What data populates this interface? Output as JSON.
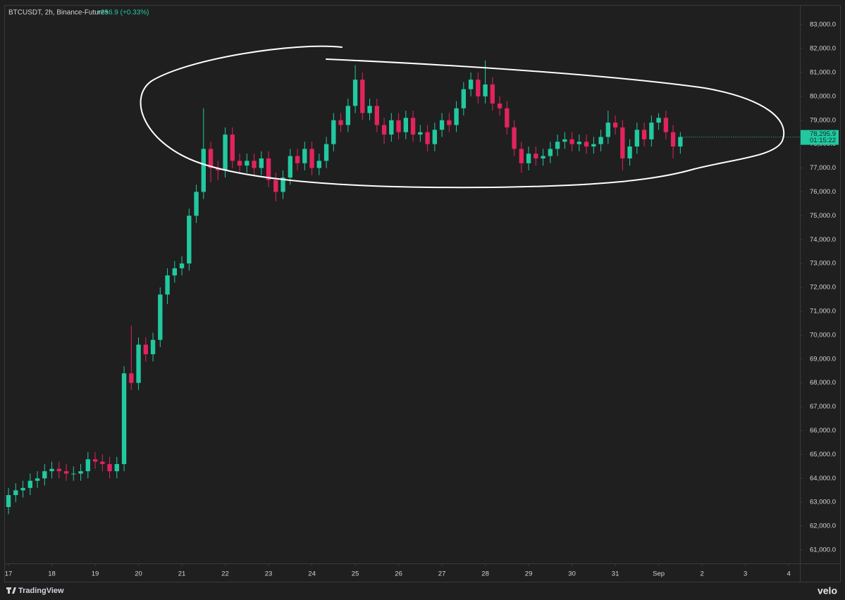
{
  "chart_data": {
    "type": "candlestick",
    "title": "BTCUSDT, 2h, Binance-Futures",
    "change_label": "+256.9 (+0.33%)",
    "watermark": "TradingView",
    "brand": "velo",
    "up_color": "#22c9a0",
    "down_color": "#e0245e",
    "x": [
      0,
      4,
      8,
      12,
      16,
      20,
      24,
      28,
      32,
      36,
      40,
      44,
      48,
      52,
      56,
      60,
      64,
      68,
      72,
      76,
      80,
      84,
      88,
      92,
      96,
      100,
      104,
      108,
      112,
      116,
      120,
      124,
      128,
      132,
      136,
      140,
      144,
      148,
      152,
      156,
      160,
      164,
      168,
      172,
      176,
      180,
      184,
      188,
      192,
      196,
      200,
      204,
      208,
      212,
      216,
      220,
      224,
      228,
      232,
      236,
      240,
      244,
      248,
      252,
      256,
      260,
      264,
      268,
      272,
      276,
      280,
      284,
      288,
      292,
      296,
      300,
      304,
      308,
      312,
      316,
      320,
      324,
      328,
      332,
      336,
      340,
      344,
      348,
      352,
      356,
      360,
      364,
      368,
      372
    ],
    "open": [
      62800,
      63300,
      63500,
      63600,
      63900,
      64000,
      64300,
      64400,
      64300,
      64200,
      64200,
      64300,
      64800,
      64700,
      64600,
      64300,
      64600,
      68400,
      68000,
      69600,
      69200,
      69800,
      71700,
      72500,
      72800,
      73000,
      75000,
      76000,
      77800,
      77000,
      76900,
      78400,
      77300,
      77100,
      77300,
      77000,
      77400,
      76500,
      76000,
      76600,
      77500,
      77200,
      77800,
      77000,
      77300,
      78000,
      79000,
      78800,
      79600,
      80700,
      79300,
      79600,
      78800,
      78400,
      79000,
      78500,
      79100,
      78400,
      78500,
      78000,
      78600,
      79000,
      78800,
      79500,
      80300,
      80700,
      80000,
      80500,
      79700,
      79500,
      78700,
      77800,
      77200,
      77600,
      77400,
      77500,
      77800,
      78100,
      78200,
      78000,
      78100,
      77900,
      78000,
      78300,
      78900,
      78700,
      77400,
      77900,
      78600,
      78200,
      78900,
      79100,
      78500,
      77900
    ],
    "high": [
      63600,
      63800,
      63900,
      64200,
      64300,
      64600,
      64700,
      64700,
      64600,
      64500,
      64600,
      65100,
      65100,
      65000,
      64900,
      64900,
      68700,
      70400,
      69900,
      69900,
      70100,
      72000,
      72800,
      73100,
      73300,
      75300,
      76300,
      79500,
      78100,
      77300,
      78700,
      78700,
      77600,
      77600,
      77600,
      77700,
      77700,
      76800,
      76900,
      77800,
      77800,
      78100,
      78100,
      77600,
      78300,
      79300,
      79300,
      79900,
      81300,
      81000,
      79900,
      79900,
      79100,
      79300,
      79300,
      79400,
      79400,
      78800,
      78800,
      78900,
      79300,
      79300,
      79800,
      80600,
      81000,
      81000,
      81500,
      80800,
      80000,
      79800,
      79000,
      78100,
      77900,
      77900,
      77800,
      78100,
      78400,
      78500,
      78500,
      78400,
      78400,
      78300,
      78600,
      79400,
      79200,
      79000,
      78200,
      78900,
      78900,
      79200,
      79300,
      79400,
      78800,
      78500
    ],
    "low": [
      62500,
      63000,
      63200,
      63300,
      63600,
      63700,
      64000,
      64000,
      63900,
      63900,
      63900,
      64000,
      64400,
      64300,
      64000,
      64000,
      64300,
      67700,
      67700,
      68900,
      68900,
      69500,
      71300,
      72200,
      72500,
      72700,
      74700,
      75700,
      76400,
      76500,
      76600,
      77000,
      76800,
      76800,
      76700,
      76700,
      76200,
      75600,
      75700,
      76300,
      76900,
      76900,
      76700,
      76700,
      77000,
      77700,
      78500,
      78500,
      79300,
      79000,
      79000,
      78500,
      78000,
      78100,
      78200,
      78200,
      78100,
      78100,
      77700,
      77700,
      78300,
      78500,
      78500,
      79200,
      80000,
      79700,
      79700,
      79400,
      79200,
      78400,
      77500,
      76800,
      76900,
      77100,
      77100,
      77200,
      77500,
      77800,
      77700,
      77700,
      77600,
      77600,
      77700,
      78000,
      78400,
      76900,
      77100,
      77600,
      77900,
      77900,
      78600,
      78200,
      77400,
      77600
    ],
    "close": [
      63300,
      63500,
      63600,
      63900,
      64000,
      64300,
      64400,
      64300,
      64200,
      64200,
      64300,
      64800,
      64700,
      64600,
      64300,
      64600,
      68400,
      68000,
      69600,
      69200,
      69800,
      71700,
      72500,
      72800,
      73000,
      75000,
      76000,
      77800,
      77000,
      76900,
      78400,
      77300,
      77100,
      77300,
      77000,
      77400,
      76500,
      76000,
      76600,
      77500,
      77200,
      77800,
      77000,
      77300,
      78000,
      79000,
      78800,
      79600,
      80700,
      79300,
      79600,
      78800,
      78400,
      79000,
      78500,
      79100,
      78400,
      78500,
      78000,
      78600,
      79000,
      78800,
      79500,
      80300,
      80700,
      80000,
      80500,
      79700,
      79500,
      78700,
      77800,
      77200,
      77600,
      77400,
      77500,
      77800,
      78100,
      78200,
      78000,
      78100,
      77900,
      78000,
      78300,
      78900,
      78700,
      77400,
      77900,
      78600,
      78200,
      78900,
      79100,
      78500,
      77900,
      78300
    ],
    "last_price": {
      "value": 78295.9,
      "label": "78,295.9"
    },
    "countdown": "01:15:22",
    "xlim": [
      -4.7,
      438.2
    ],
    "xticks": [
      {
        "value": 0,
        "label": "17"
      },
      {
        "value": 24,
        "label": "18"
      },
      {
        "value": 48,
        "label": "19"
      },
      {
        "value": 72,
        "label": "20"
      },
      {
        "value": 96,
        "label": "21"
      },
      {
        "value": 120,
        "label": "22"
      },
      {
        "value": 144,
        "label": "23"
      },
      {
        "value": 168,
        "label": "24"
      },
      {
        "value": 192,
        "label": "25"
      },
      {
        "value": 216,
        "label": "26"
      },
      {
        "value": 240,
        "label": "27"
      },
      {
        "value": 264,
        "label": "28"
      },
      {
        "value": 288,
        "label": "29"
      },
      {
        "value": 312,
        "label": "30"
      },
      {
        "value": 336,
        "label": "31"
      },
      {
        "value": 360,
        "label": "Sep"
      },
      {
        "value": 384,
        "label": "2"
      },
      {
        "value": 408,
        "label": "3"
      },
      {
        "value": 432,
        "label": "4"
      }
    ],
    "ylim": [
      60440,
      83800
    ],
    "yticks": [
      {
        "value": 61000,
        "label": "61,000.0"
      },
      {
        "value": 62000,
        "label": "62,000.0"
      },
      {
        "value": 63000,
        "label": "63,000.0"
      },
      {
        "value": 64000,
        "label": "64,000.0"
      },
      {
        "value": 65000,
        "label": "65,000.0"
      },
      {
        "value": 66000,
        "label": "66,000.0"
      },
      {
        "value": 67000,
        "label": "67,000.0"
      },
      {
        "value": 68000,
        "label": "68,000.0"
      },
      {
        "value": 69000,
        "label": "69,000.0"
      },
      {
        "value": 70000,
        "label": "70,000.0"
      },
      {
        "value": 71000,
        "label": "71,000.0"
      },
      {
        "value": 72000,
        "label": "72,000.0"
      },
      {
        "value": 73000,
        "label": "73,000.0"
      },
      {
        "value": 74000,
        "label": "74,000.0"
      },
      {
        "value": 75000,
        "label": "75,000.0"
      },
      {
        "value": 76000,
        "label": "76,000.0"
      },
      {
        "value": 77000,
        "label": "77,000.0"
      },
      {
        "value": 78000,
        "label": "78,000.0"
      },
      {
        "value": 79000,
        "label": "79,000.0"
      },
      {
        "value": 80000,
        "label": "80,000.0"
      },
      {
        "value": 81000,
        "label": "81,000.0"
      },
      {
        "value": 82000,
        "label": "82,000.0"
      },
      {
        "value": 83000,
        "label": "83,000.0"
      }
    ]
  }
}
